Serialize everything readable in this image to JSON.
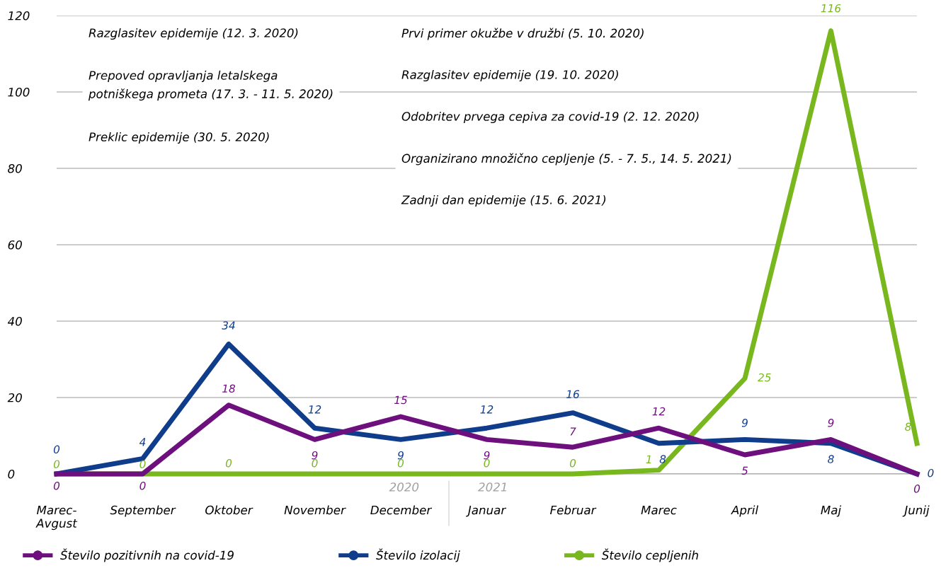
{
  "chart_data": {
    "type": "line",
    "categories": [
      "Marec-\nAvgust",
      "September",
      "Oktober",
      "November",
      "December",
      "Januar",
      "Februar",
      "Marec",
      "April",
      "Maj",
      "Junij"
    ],
    "series": [
      {
        "name": "Število pozitivnih na covid-19",
        "color": "#6e0f7e",
        "values": [
          0,
          0,
          18,
          9,
          15,
          9,
          7,
          12,
          5,
          9,
          0
        ]
      },
      {
        "name": "Število izolacij",
        "color": "#0f3d8c",
        "values": [
          0,
          4,
          34,
          12,
          9,
          12,
          16,
          8,
          9,
          8,
          0
        ]
      },
      {
        "name": "Število cepljenih",
        "color": "#78b71e",
        "values": [
          0,
          0,
          0,
          0,
          0,
          0,
          0,
          1,
          25,
          116,
          8
        ]
      }
    ],
    "ylim": [
      0,
      120
    ],
    "yticks": [
      0,
      20,
      40,
      60,
      80,
      100,
      120
    ],
    "grid": "y",
    "legend": "bottom",
    "data_labels": true,
    "marker": "none",
    "line_style": "solid",
    "annotations": [
      "Razglasitev epidemije (12. 3. 2020)",
      "Prepoved opravljanja letalskega\npotniškega prometa (17. 3. - 11. 5. 2020)",
      "Preklic epidemije (30. 5. 2020)",
      "Prvi primer okužbe v družbi (5. 10. 2020)",
      "Razglasitev epidemije (19. 10. 2020)",
      "Odobritev prvega cepiva za covid-19 (2. 12. 2020)",
      "Organizirano množično cepljenje (5. - 7. 5., 14. 5. 2021)",
      "Zadnji dan epidemije (15. 6. 2021)",
      "2020",
      "2021"
    ]
  }
}
